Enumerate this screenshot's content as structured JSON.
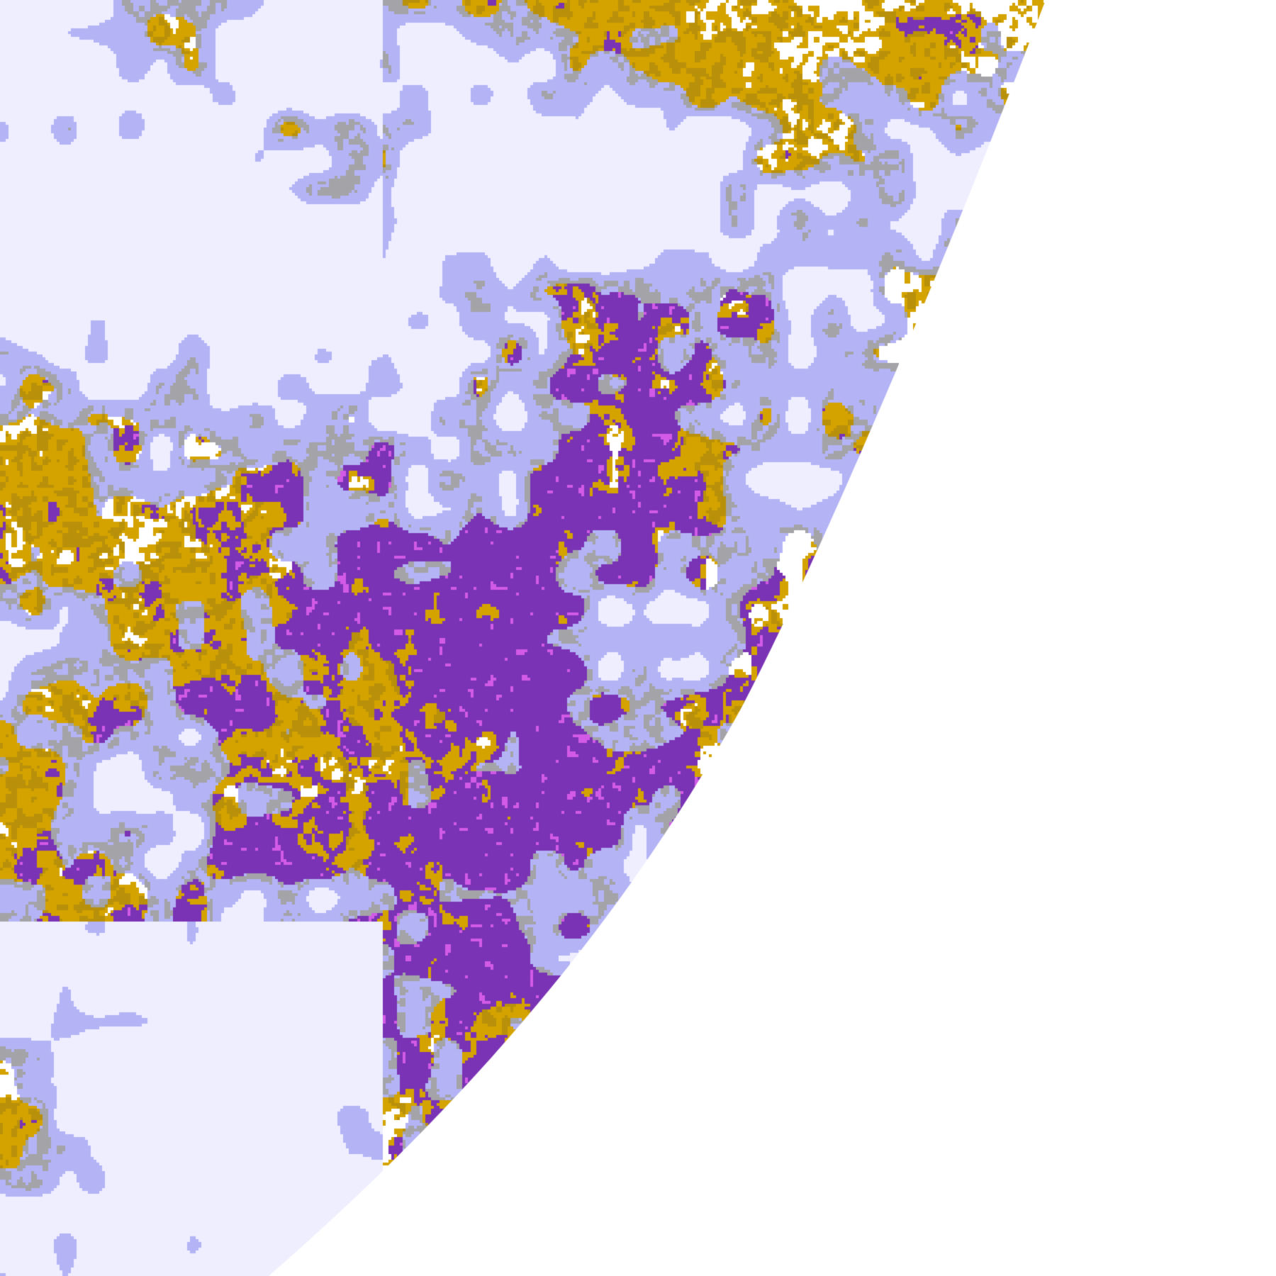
{
  "image": {
    "kind": "satellite cloud-type classification (earth disk edge at right)",
    "background": "#ffffff",
    "class_colors": {
      "clear": "#ffffff",
      "low_cloud": "#d4a300",
      "low_cloud_dark": "#b8900a",
      "mid_cloud": "#7b33b5",
      "mid_cloud_light": "#d25ae6",
      "high_thin": "#a3a3a8",
      "high_cloud": "#b3b3f5",
      "deep_convection": "#eeeeff"
    }
  }
}
